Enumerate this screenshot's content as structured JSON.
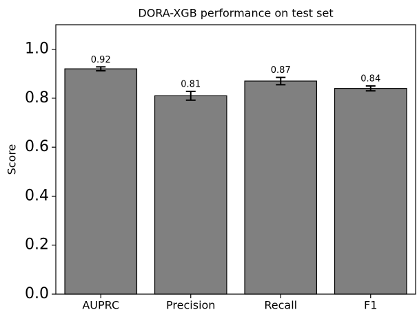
{
  "chart_data": {
    "type": "bar",
    "title": "DORA-XGB performance on test set",
    "ylabel": "Score",
    "categories": [
      "AUPRC",
      "Precision",
      "Recall",
      "F1"
    ],
    "values": [
      0.92,
      0.81,
      0.87,
      0.84
    ],
    "errors": [
      0.008,
      0.018,
      0.015,
      0.01
    ],
    "color": "#808080",
    "ylim": [
      0,
      1.1
    ],
    "yticks": [
      {
        "value": 0,
        "label": "0.0"
      },
      0.2,
      0.4,
      0.6,
      0.8,
      {
        "value": 1,
        "label": "1.0"
      }
    ],
    "grid": false
  }
}
